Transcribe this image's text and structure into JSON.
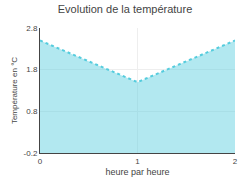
{
  "chart_data": {
    "type": "area",
    "title": "Evolution de la température",
    "xlabel": "heure par heure",
    "ylabel": "Température en °C",
    "x": [
      0,
      1,
      2
    ],
    "values": [
      2.5,
      1.5,
      2.5
    ],
    "xlim": [
      0,
      2
    ],
    "ylim": [
      -0.2,
      2.8
    ],
    "xticks": [
      0,
      1,
      2
    ],
    "yticks": [
      -0.2,
      0.8,
      1.8,
      2.8
    ],
    "color": "#55ccdd",
    "line_style": "dotted",
    "grid": true
  }
}
